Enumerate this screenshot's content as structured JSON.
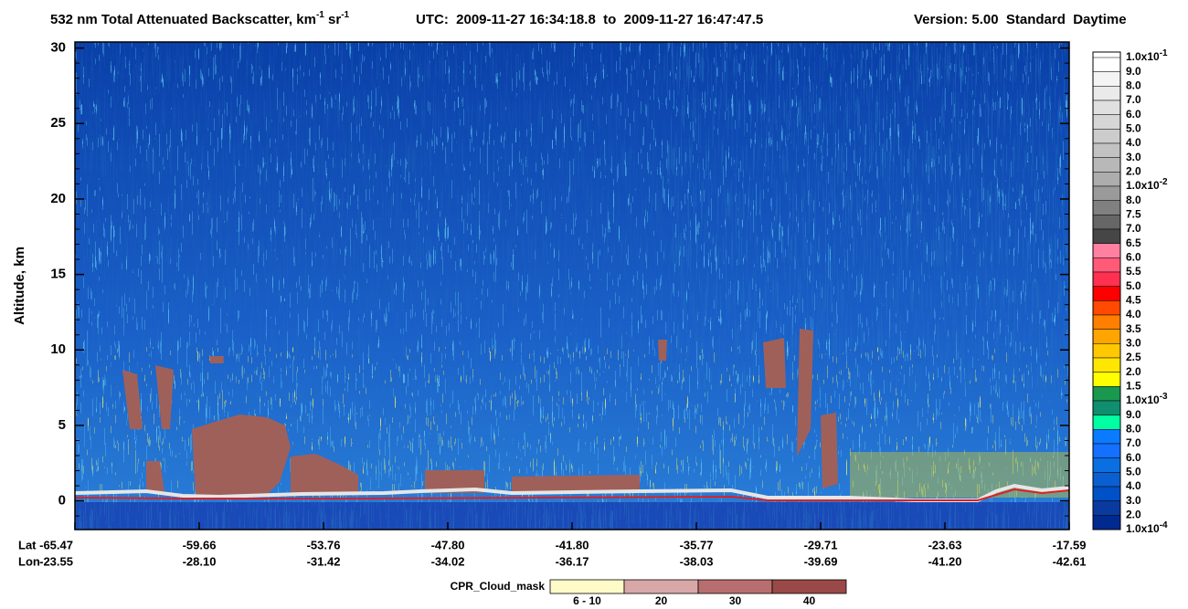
{
  "chart_data": {
    "type": "heatmap",
    "title": {
      "main": "532 nm Total Attenuated Backscatter, km",
      "sup1": "-1",
      "mid": " sr",
      "sup2": "-1"
    },
    "utc": "UTC:  2009-11-27 16:34:18.8  to  2009-11-27 16:47:47.5",
    "version": "Version: 5.00  Standard  Daytime",
    "y_label": "Altitude, km",
    "ylim": [
      -1.9,
      30.4
    ],
    "yticks": [
      0,
      5,
      10,
      15,
      20,
      25,
      30
    ],
    "yminorticks": [
      -1,
      1,
      2,
      3,
      4,
      6,
      7,
      8,
      9,
      11,
      12,
      13,
      14,
      16,
      17,
      18,
      19,
      21,
      22,
      23,
      24,
      26,
      27,
      28,
      29
    ],
    "x_rows": [
      "Lat",
      "Lon"
    ],
    "lat": [
      "-65.47",
      "-59.66",
      "-53.76",
      "-47.80",
      "-41.80",
      "-35.77",
      "-29.71",
      "-23.63",
      "-17.59"
    ],
    "lon": [
      "-23.55",
      "-28.10",
      "-31.42",
      "-34.02",
      "-36.17",
      "-38.03",
      "-39.69",
      "-41.20",
      "-42.61"
    ],
    "colorbar": {
      "labels": [
        {
          "text": "1.0x10",
          "sup": "-1"
        },
        "9.0",
        "8.0",
        "7.0",
        "6.0",
        "5.0",
        "4.0",
        "3.0",
        "2.0",
        {
          "text": "1.0x10",
          "sup": "-2"
        },
        "8.0",
        "7.5",
        "7.0",
        "6.5",
        "6.0",
        "5.5",
        "5.0",
        "4.5",
        "4.0",
        "3.5",
        "3.0",
        "2.5",
        "2.0",
        "1.5",
        {
          "text": "1.0x10",
          "sup": "-3"
        },
        "9.0",
        "8.0",
        "7.0",
        "6.0",
        "5.0",
        "4.0",
        "3.0",
        "2.0",
        {
          "text": "1.0x10",
          "sup": "-4"
        }
      ],
      "colors": [
        "#ffffff",
        "#f4f4f4",
        "#eaeaea",
        "#e0e0e0",
        "#d6d6d6",
        "#cccccc",
        "#c2c2c2",
        "#b8b8b8",
        "#adadad",
        "#9a9a9a",
        "#808080",
        "#666666",
        "#464646",
        "#ff80a0",
        "#ff5a78",
        "#ff3050",
        "#ff0000",
        "#ff4a00",
        "#ff7f00",
        "#ffa500",
        "#ffc800",
        "#ffe600",
        "#ffff00",
        "#1a9850",
        "#0f8f70",
        "#00ffa0",
        "#0a7aff",
        "#1470ff",
        "#0a6fe0",
        "#0a60d0",
        "#0050c8",
        "#0a3aa0",
        "#002a90"
      ]
    },
    "cpr": {
      "title": "CPR_Cloud_mask",
      "labels": [
        "6 - 10",
        "20",
        "30",
        "40"
      ],
      "colors": [
        "#fffbc8",
        "#d8a8a8",
        "#b86e6e",
        "#9a4848"
      ]
    }
  }
}
